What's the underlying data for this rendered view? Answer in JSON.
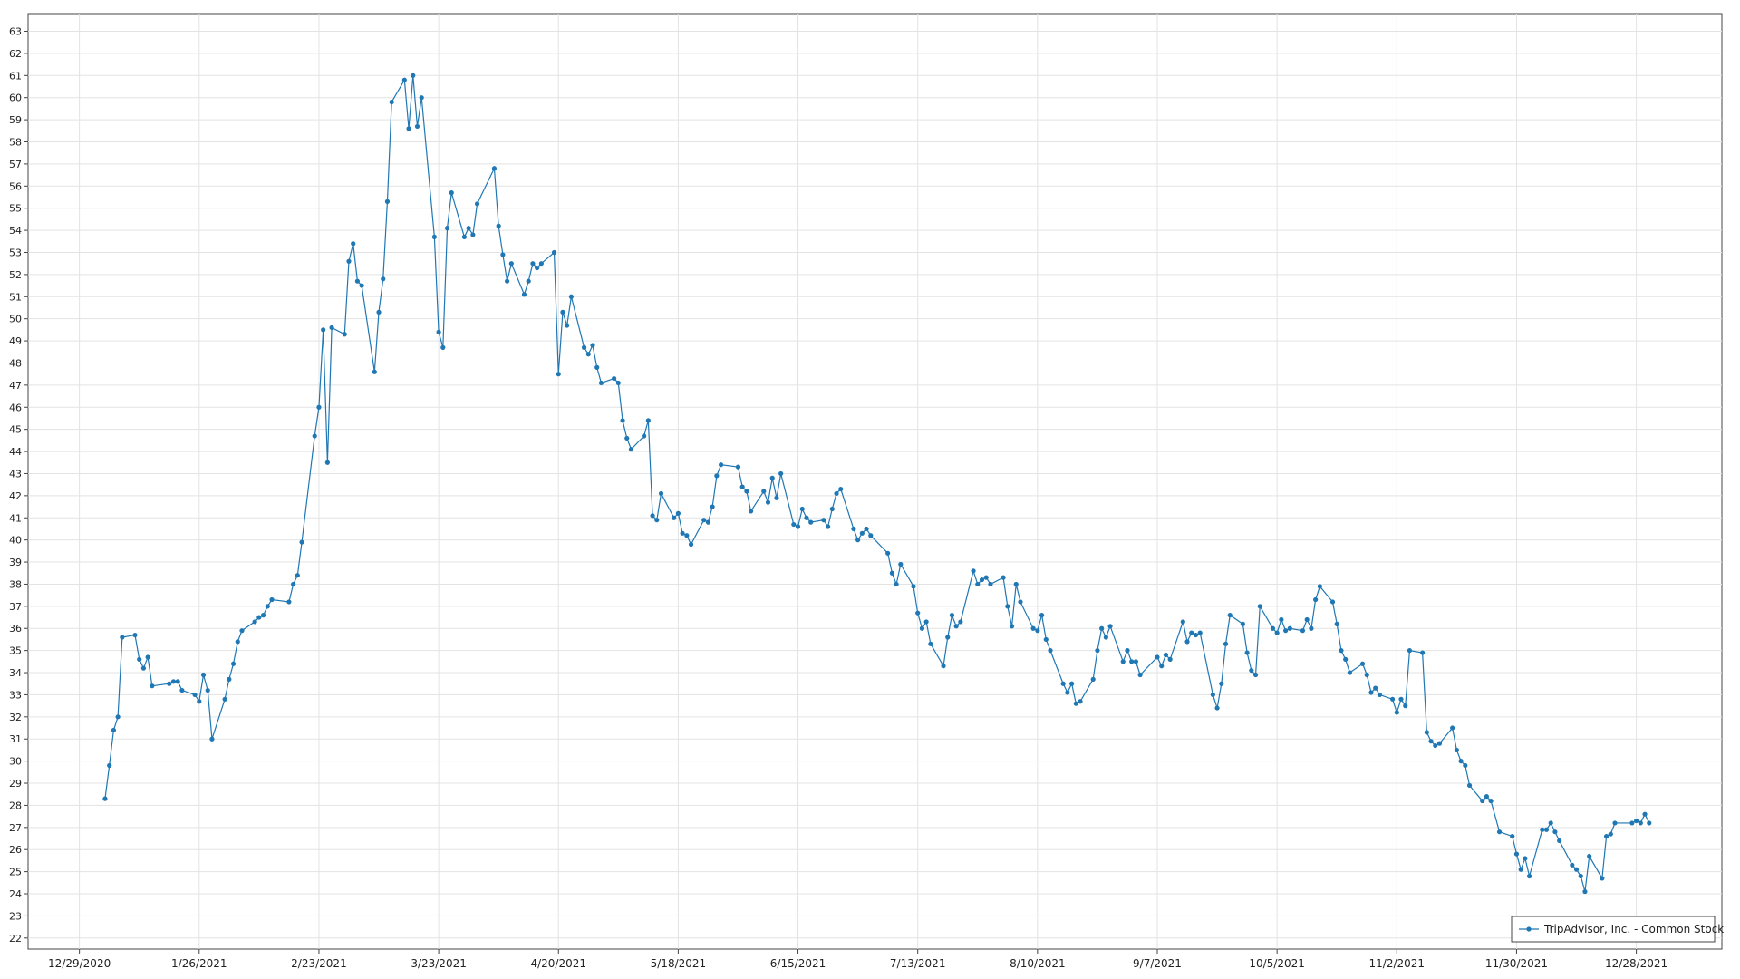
{
  "chart_data": {
    "type": "line",
    "grid": true,
    "legend": "lower right",
    "xlim": [
      "12/17/2020",
      "1/17/2022"
    ],
    "xticks": [
      "12/29/2020",
      "1/26/2021",
      "2/23/2021",
      "3/23/2021",
      "4/20/2021",
      "5/18/2021",
      "6/15/2021",
      "7/13/2021",
      "8/10/2021",
      "9/7/2021",
      "10/5/2021",
      "11/2/2021",
      "11/30/2021",
      "12/28/2021"
    ],
    "ylim": [
      21.5,
      63.8
    ],
    "yticks": [
      22,
      23,
      24,
      25,
      26,
      27,
      28,
      29,
      30,
      31,
      32,
      33,
      34,
      35,
      36,
      37,
      38,
      39,
      40,
      41,
      42,
      43,
      44,
      45,
      46,
      47,
      48,
      49,
      50,
      51,
      52,
      53,
      54,
      55,
      56,
      57,
      58,
      59,
      60,
      61,
      62,
      63
    ],
    "x": [
      "1/4/2021",
      "1/5/2021",
      "1/6/2021",
      "1/7/2021",
      "1/8/2021",
      "1/11/2021",
      "1/12/2021",
      "1/13/2021",
      "1/14/2021",
      "1/15/2021",
      "1/19/2021",
      "1/20/2021",
      "1/21/2021",
      "1/22/2021",
      "1/25/2021",
      "1/26/2021",
      "1/27/2021",
      "1/28/2021",
      "1/29/2021",
      "2/1/2021",
      "2/2/2021",
      "2/3/2021",
      "2/4/2021",
      "2/5/2021",
      "2/8/2021",
      "2/9/2021",
      "2/10/2021",
      "2/11/2021",
      "2/12/2021",
      "2/16/2021",
      "2/17/2021",
      "2/18/2021",
      "2/19/2021",
      "2/22/2021",
      "2/23/2021",
      "2/24/2021",
      "2/25/2021",
      "2/26/2021",
      "3/1/2021",
      "3/2/2021",
      "3/3/2021",
      "3/4/2021",
      "3/5/2021",
      "3/8/2021",
      "3/9/2021",
      "3/10/2021",
      "3/11/2021",
      "3/12/2021",
      "3/15/2021",
      "3/16/2021",
      "3/17/2021",
      "3/18/2021",
      "3/19/2021",
      "3/22/2021",
      "3/23/2021",
      "3/24/2021",
      "3/25/2021",
      "3/26/2021",
      "3/29/2021",
      "3/30/2021",
      "3/31/2021",
      "4/1/2021",
      "4/5/2021",
      "4/6/2021",
      "4/7/2021",
      "4/8/2021",
      "4/9/2021",
      "4/12/2021",
      "4/13/2021",
      "4/14/2021",
      "4/15/2021",
      "4/16/2021",
      "4/19/2021",
      "4/20/2021",
      "4/21/2021",
      "4/22/2021",
      "4/23/2021",
      "4/26/2021",
      "4/27/2021",
      "4/28/2021",
      "4/29/2021",
      "4/30/2021",
      "5/3/2021",
      "5/4/2021",
      "5/5/2021",
      "5/6/2021",
      "5/7/2021",
      "5/10/2021",
      "5/11/2021",
      "5/12/2021",
      "5/13/2021",
      "5/14/2021",
      "5/17/2021",
      "5/18/2021",
      "5/19/2021",
      "5/20/2021",
      "5/21/2021",
      "5/24/2021",
      "5/25/2021",
      "5/26/2021",
      "5/27/2021",
      "5/28/2021",
      "6/1/2021",
      "6/2/2021",
      "6/3/2021",
      "6/4/2021",
      "6/7/2021",
      "6/8/2021",
      "6/9/2021",
      "6/10/2021",
      "6/11/2021",
      "6/14/2021",
      "6/15/2021",
      "6/16/2021",
      "6/17/2021",
      "6/18/2021",
      "6/21/2021",
      "6/22/2021",
      "6/23/2021",
      "6/24/2021",
      "6/25/2021",
      "6/28/2021",
      "6/29/2021",
      "6/30/2021",
      "7/1/2021",
      "7/2/2021",
      "7/6/2021",
      "7/7/2021",
      "7/8/2021",
      "7/9/2021",
      "7/12/2021",
      "7/13/2021",
      "7/14/2021",
      "7/15/2021",
      "7/16/2021",
      "7/19/2021",
      "7/20/2021",
      "7/21/2021",
      "7/22/2021",
      "7/23/2021",
      "7/26/2021",
      "7/27/2021",
      "7/28/2021",
      "7/29/2021",
      "7/30/2021",
      "8/2/2021",
      "8/3/2021",
      "8/4/2021",
      "8/5/2021",
      "8/6/2021",
      "8/9/2021",
      "8/10/2021",
      "8/11/2021",
      "8/12/2021",
      "8/13/2021",
      "8/16/2021",
      "8/17/2021",
      "8/18/2021",
      "8/19/2021",
      "8/20/2021",
      "8/23/2021",
      "8/24/2021",
      "8/25/2021",
      "8/26/2021",
      "8/27/2021",
      "8/30/2021",
      "8/31/2021",
      "9/1/2021",
      "9/2/2021",
      "9/3/2021",
      "9/7/2021",
      "9/8/2021",
      "9/9/2021",
      "9/10/2021",
      "9/13/2021",
      "9/14/2021",
      "9/15/2021",
      "9/16/2021",
      "9/17/2021",
      "9/20/2021",
      "9/21/2021",
      "9/22/2021",
      "9/23/2021",
      "9/24/2021",
      "9/27/2021",
      "9/28/2021",
      "9/29/2021",
      "9/30/2021",
      "10/1/2021",
      "10/4/2021",
      "10/5/2021",
      "10/6/2021",
      "10/7/2021",
      "10/8/2021",
      "10/11/2021",
      "10/12/2021",
      "10/13/2021",
      "10/14/2021",
      "10/15/2021",
      "10/18/2021",
      "10/19/2021",
      "10/20/2021",
      "10/21/2021",
      "10/22/2021",
      "10/25/2021",
      "10/26/2021",
      "10/27/2021",
      "10/28/2021",
      "10/29/2021",
      "11/1/2021",
      "11/2/2021",
      "11/3/2021",
      "11/4/2021",
      "11/5/2021",
      "11/8/2021",
      "11/9/2021",
      "11/10/2021",
      "11/11/2021",
      "11/12/2021",
      "11/15/2021",
      "11/16/2021",
      "11/17/2021",
      "11/18/2021",
      "11/19/2021",
      "11/22/2021",
      "11/23/2021",
      "11/24/2021",
      "11/26/2021",
      "11/29/2021",
      "11/30/2021",
      "12/1/2021",
      "12/2/2021",
      "12/3/2021",
      "12/6/2021",
      "12/7/2021",
      "12/8/2021",
      "12/9/2021",
      "12/10/2021",
      "12/13/2021",
      "12/14/2021",
      "12/15/2021",
      "12/16/2021",
      "12/17/2021",
      "12/20/2021",
      "12/21/2021",
      "12/22/2021",
      "12/23/2021",
      "12/27/2021",
      "12/28/2021",
      "12/29/2021",
      "12/30/2021",
      "12/31/2021"
    ],
    "series": [
      {
        "name": "TripAdvisor, Inc. - Common Stock",
        "color": "#1f77b4",
        "values": [
          28.3,
          29.8,
          31.4,
          32.0,
          35.6,
          35.7,
          34.6,
          34.2,
          34.7,
          33.4,
          33.5,
          33.6,
          33.6,
          33.2,
          33.0,
          32.7,
          33.9,
          33.2,
          31.0,
          32.8,
          33.7,
          34.4,
          35.4,
          35.9,
          36.3,
          36.5,
          36.6,
          37.0,
          37.3,
          37.2,
          38.0,
          38.4,
          39.9,
          44.7,
          46.0,
          49.5,
          43.5,
          49.6,
          49.3,
          52.6,
          53.4,
          51.7,
          51.5,
          47.6,
          50.3,
          51.8,
          55.3,
          59.8,
          60.8,
          58.6,
          61.0,
          58.7,
          60.0,
          53.7,
          49.4,
          48.7,
          54.1,
          55.7,
          53.7,
          54.1,
          53.8,
          55.2,
          56.8,
          54.2,
          52.9,
          51.7,
          52.5,
          51.1,
          51.7,
          52.5,
          52.3,
          52.5,
          53.0,
          47.5,
          50.3,
          49.7,
          51.0,
          48.7,
          48.4,
          48.8,
          47.8,
          47.1,
          47.3,
          47.1,
          45.4,
          44.6,
          44.1,
          44.7,
          45.4,
          41.1,
          40.9,
          42.1,
          41.0,
          41.2,
          40.3,
          40.2,
          39.8,
          40.9,
          40.8,
          41.5,
          42.9,
          43.4,
          43.3,
          42.4,
          42.2,
          41.3,
          42.2,
          41.7,
          42.8,
          41.9,
          43.0,
          40.7,
          40.6,
          41.4,
          41.0,
          40.8,
          40.9,
          40.6,
          41.4,
          42.1,
          42.3,
          40.5,
          40.0,
          40.3,
          40.5,
          40.2,
          39.4,
          38.5,
          38.0,
          38.9,
          37.9,
          36.7,
          36.0,
          36.3,
          35.3,
          34.3,
          35.6,
          36.6,
          36.1,
          36.3,
          38.6,
          38.0,
          38.2,
          38.3,
          38.0,
          38.3,
          37.0,
          36.1,
          38.0,
          37.2,
          36.0,
          35.9,
          36.6,
          35.5,
          35.0,
          33.5,
          33.1,
          33.5,
          32.6,
          32.7,
          33.7,
          35.0,
          36.0,
          35.6,
          36.1,
          34.5,
          35.0,
          34.5,
          34.5,
          33.9,
          34.7,
          34.3,
          34.8,
          34.6,
          36.3,
          35.4,
          35.8,
          35.7,
          35.8,
          33.0,
          32.4,
          33.5,
          35.3,
          36.6,
          36.2,
          34.9,
          34.1,
          33.9,
          37.0,
          36.0,
          35.8,
          36.4,
          35.9,
          36.0,
          35.9,
          36.4,
          36.0,
          37.3,
          37.9,
          37.2,
          36.2,
          35.0,
          34.6,
          34.0,
          34.4,
          33.9,
          33.1,
          33.3,
          33.0,
          32.8,
          32.2,
          32.8,
          32.5,
          35.0,
          34.9,
          31.3,
          30.9,
          30.7,
          30.8,
          31.5,
          30.5,
          30.0,
          29.8,
          28.9,
          28.2,
          28.4,
          28.2,
          26.8,
          26.6,
          25.8,
          25.1,
          25.6,
          24.8,
          26.9,
          26.9,
          27.2,
          26.8,
          26.4,
          25.3,
          25.1,
          24.8,
          24.1,
          25.7,
          24.7,
          26.6,
          26.7,
          27.2,
          27.2,
          27.3,
          27.2,
          27.6,
          27.2
        ]
      }
    ]
  }
}
